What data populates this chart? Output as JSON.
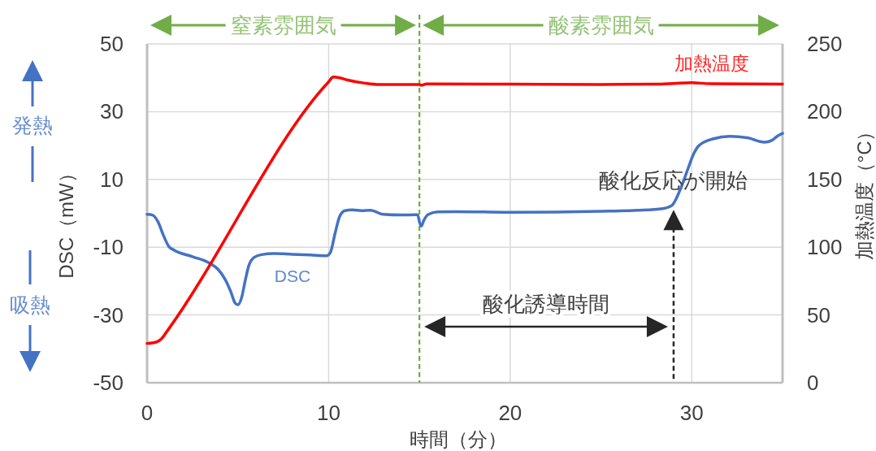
{
  "chart_data": {
    "type": "line",
    "xlabel": "時間（分）",
    "ylabel": "DSC（mW）",
    "y2label": "加熱温度（°C）",
    "xlim": [
      0,
      35
    ],
    "xticks": [
      0,
      10,
      20,
      30
    ],
    "ylim": [
      -50,
      50
    ],
    "yticks": [
      -50,
      -30,
      -10,
      10,
      30,
      50
    ],
    "y2lim": [
      0,
      250
    ],
    "y2ticks": [
      0,
      50,
      100,
      150,
      200,
      250
    ],
    "grid": true,
    "series": [
      {
        "name": "DSC",
        "color": "#4472c4",
        "x": [
          0,
          0.3,
          0.6,
          0.9,
          1.2,
          1.5,
          2.5,
          3.4,
          3.9,
          4.3,
          4.6,
          4.85,
          5.0,
          5.2,
          5.4,
          5.6,
          5.9,
          6.3,
          7,
          8,
          9,
          9.9,
          10.1,
          10.35,
          10.6,
          10.9,
          11.3,
          11.8,
          12.3,
          13,
          14,
          14.9,
          15.0,
          15.1,
          15.25,
          15.5,
          16,
          17,
          20,
          25,
          27,
          28.4,
          28.9,
          29.35,
          29.8,
          30.1,
          30.4,
          31.2,
          32.1,
          33.05,
          34.0,
          34.4,
          34.75,
          35
        ],
        "values": [
          -0.3,
          -0.5,
          -2.5,
          -6.5,
          -9.8,
          -10.9,
          -12.8,
          -14.6,
          -16.5,
          -19.5,
          -23,
          -26.5,
          -27,
          -25,
          -20,
          -15.5,
          -13,
          -12.2,
          -11.9,
          -12.1,
          -12.3,
          -12.5,
          -11.5,
          -6,
          -1,
          0.8,
          1,
          0.8,
          0.9,
          -0.3,
          -0.5,
          -0.4,
          -2.5,
          -3.8,
          -2,
          -0.3,
          0.4,
          0.5,
          0.3,
          0.6,
          0.9,
          1.4,
          2.3,
          6.8,
          13.3,
          17.5,
          20,
          22,
          22.7,
          22.3,
          21,
          21.5,
          22.9,
          23.6
        ]
      },
      {
        "name": "加熱温度",
        "color": "#ff0000",
        "axis": "y2",
        "x": [
          0,
          0.5,
          0.8,
          1.1,
          10,
          10.25,
          10.6,
          11,
          12,
          12.8,
          15,
          15.1,
          15.4,
          20,
          25,
          28,
          29,
          30,
          31,
          35
        ],
        "values": [
          29,
          30,
          32.5,
          38,
          222,
          225.5,
          225,
          223.5,
          221,
          220,
          220,
          219.5,
          220.5,
          220.3,
          220,
          220.3,
          220.8,
          221.4,
          220.6,
          220.3
        ]
      }
    ],
    "ref_lines": [
      {
        "axis": "x",
        "value": 15,
        "color": "#70ad47",
        "line_style": "dashed"
      }
    ],
    "annotations": [
      "窒素雰囲気",
      "酸素雰囲気",
      "発熱",
      "吸熱",
      {
        "text": "酸化反応が開始",
        "x": 29,
        "y": 1
      },
      "酸化誘導時間"
    ]
  }
}
